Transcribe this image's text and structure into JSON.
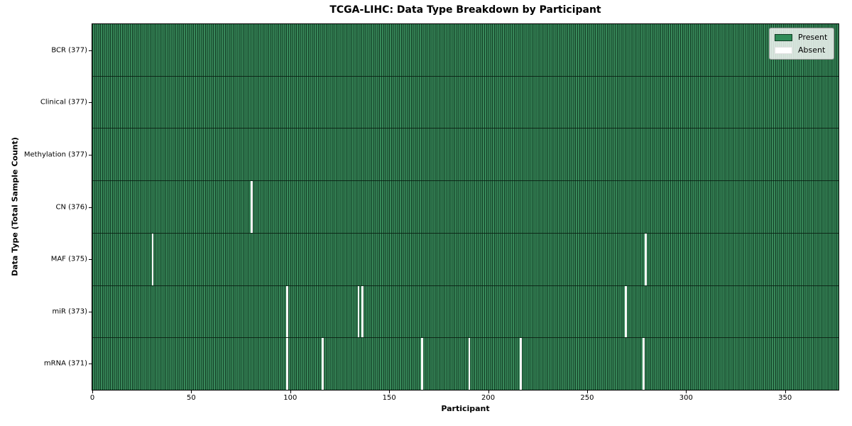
{
  "chart_data": {
    "type": "heatmap",
    "title": "TCGA-LIHC: Data Type Breakdown by Participant",
    "xlabel": "Participant",
    "ylabel": "Data Type (Total Sample Count)",
    "xlim": [
      0,
      377
    ],
    "xticks": [
      0,
      50,
      100,
      150,
      200,
      250,
      300,
      350
    ],
    "n_participants": 377,
    "grid": false,
    "legend": {
      "position": "upper right",
      "entries": [
        {
          "label": "Present",
          "color": "#2e8b57"
        },
        {
          "label": "Absent",
          "color": "#ffffff"
        }
      ]
    },
    "colors": {
      "present_fill": "#38895a",
      "cell_edge": "#123c24",
      "absent": "#fdfdfd",
      "row_divider": "#0d2818",
      "axes_border": "#000000",
      "legend_border": "#9a9a9a"
    },
    "rows": [
      {
        "name": "BCR",
        "label": "BCR (377)",
        "total": 377,
        "missing": []
      },
      {
        "name": "Clinical",
        "label": "Clinical (377)",
        "total": 377,
        "missing": []
      },
      {
        "name": "Methylation",
        "label": "Methylation (377)",
        "total": 377,
        "missing": []
      },
      {
        "name": "CN",
        "label": "CN (376)",
        "total": 376,
        "missing": [
          80
        ]
      },
      {
        "name": "MAF",
        "label": "MAF (375)",
        "total": 375,
        "missing": [
          30,
          279
        ]
      },
      {
        "name": "miR",
        "label": "miR (373)",
        "total": 373,
        "missing": [
          98,
          134,
          136,
          269
        ]
      },
      {
        "name": "mRNA",
        "label": "mRNA (371)",
        "total": 371,
        "missing": [
          98,
          116,
          166,
          190,
          216,
          278
        ]
      }
    ]
  }
}
